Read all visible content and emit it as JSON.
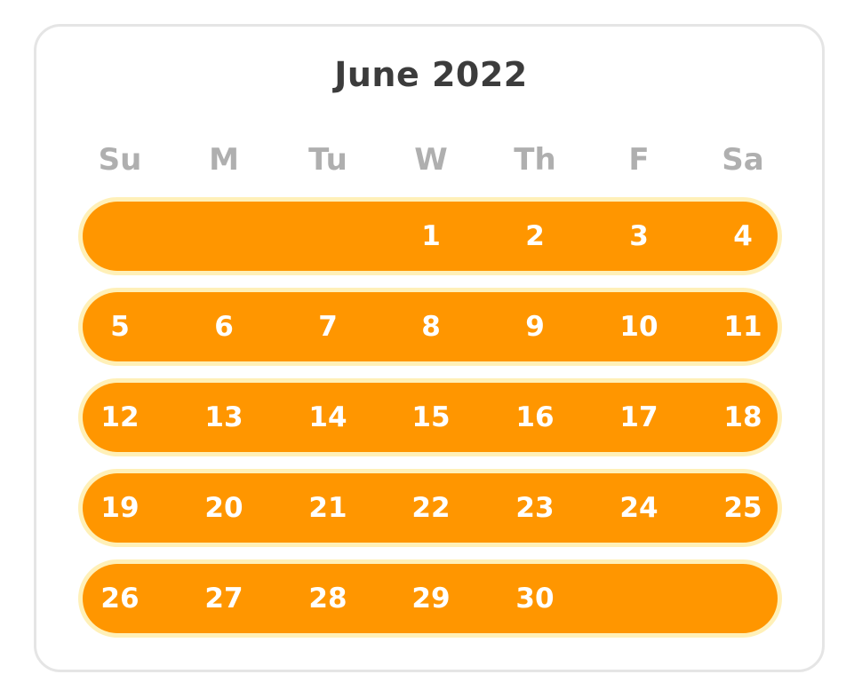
{
  "calendar": {
    "title": "June 2022",
    "weekdays": [
      "Su",
      "M",
      "Tu",
      "W",
      "Th",
      "F",
      "Sa"
    ],
    "streak_color": "#ff9600",
    "weeks": [
      [
        "",
        "",
        "",
        "1",
        "2",
        "3",
        "4"
      ],
      [
        "5",
        "6",
        "7",
        "8",
        "9",
        "10",
        "11"
      ],
      [
        "12",
        "13",
        "14",
        "15",
        "16",
        "17",
        "18"
      ],
      [
        "19",
        "20",
        "21",
        "22",
        "23",
        "24",
        "25"
      ],
      [
        "26",
        "27",
        "28",
        "29",
        "30",
        "",
        ""
      ]
    ]
  }
}
